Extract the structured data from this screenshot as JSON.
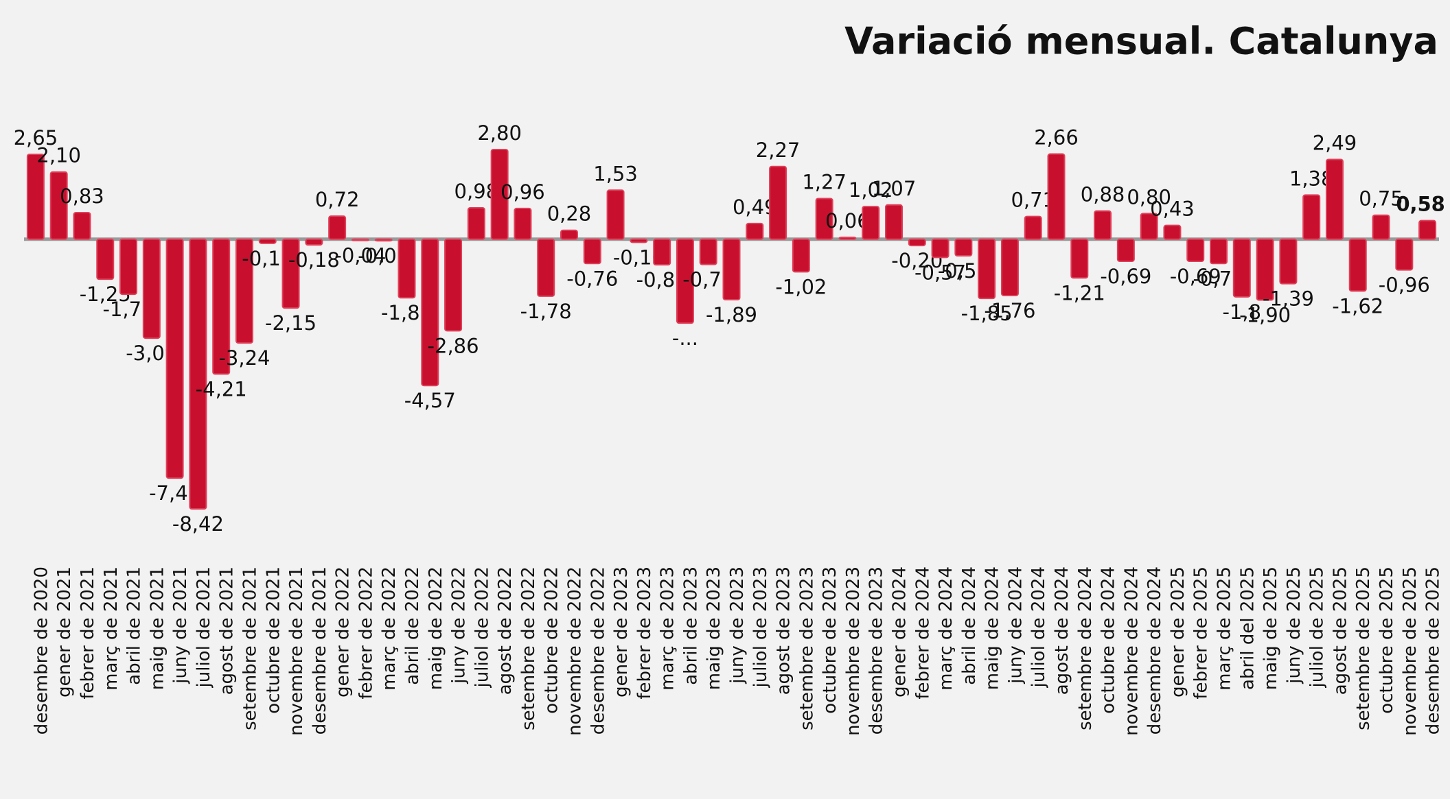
{
  "chart_data": {
    "type": "bar",
    "title": "Variació mensual. Catalunya",
    "color": "#c8102e",
    "categories": [
      "desembre de 2020",
      "gener de 2021",
      "febrer de 2021",
      "març de 2021",
      "abril de 2021",
      "maig de 2021",
      "juny de 2021",
      "juliol de 2021",
      "agost de 2021",
      "setembre de 2021",
      "octubre de 2021",
      "novembre de 2021",
      "desembre de 2021",
      "gener de 2022",
      "febrer de 2022",
      "març de 2022",
      "abril de 2022",
      "maig de 2022",
      "juny de 2022",
      "juliol de 2022",
      "agost de 2022",
      "setembre de 2022",
      "octubre de 2022",
      "novembre de 2022",
      "desembre de 2022",
      "gener de 2023",
      "febrer de 2023",
      "març de 2023",
      "abril de 2023",
      "maig de 2023",
      "juny de 2023",
      "juliol de 2023",
      "agost de 2023",
      "setembre de 2023",
      "octubre de 2023",
      "novembre de 2023",
      "desembre de 2023",
      "gener de 2024",
      "febrer de 2024",
      "març de 2024",
      "abril de 2024",
      "maig de 2024",
      "juny de 2024",
      "juliol de 2024",
      "agost de 2024",
      "setembre de 2024",
      "octubre de 2024",
      "novembre de 2024",
      "desembre de 2024",
      "gener de 2025",
      "febrer de 2025",
      "març de 2025",
      "abril del 2025",
      "maig de 2025",
      "juny de 2025",
      "juliol de 2025",
      "agost de 2025",
      "setembre de 2025",
      "octubre de 2025",
      "novembre de 2025",
      "desembre de 2025"
    ],
    "values": [
      2.65,
      2.1,
      0.83,
      -1.25,
      -1.72,
      -3.09,
      -7.46,
      -8.42,
      -4.21,
      -3.24,
      -0.13,
      -2.15,
      -0.18,
      0.72,
      -0.04,
      -0.05,
      -1.83,
      -4.57,
      -2.86,
      0.98,
      2.8,
      0.96,
      -1.78,
      0.28,
      -0.76,
      1.53,
      -0.1,
      -0.8,
      -2.62,
      -0.79,
      -1.89,
      0.49,
      2.27,
      -1.02,
      1.27,
      0.06,
      1.02,
      1.07,
      -0.2,
      -0.57,
      -0.52,
      -1.85,
      -1.76,
      0.71,
      2.66,
      -1.21,
      0.88,
      -0.69,
      0.8,
      0.43,
      -0.69,
      -0.76,
      -1.8,
      -1.9,
      -1.39,
      1.38,
      2.49,
      -1.62,
      0.75,
      -0.96,
      0.58
    ],
    "value_labels": [
      "2,65",
      "2,10",
      "0,83",
      "-1,25",
      "-1,72",
      "-3,09",
      "-7,46",
      "-8,42",
      "-4,21",
      "-3,24",
      "-0,13",
      "-2,15",
      "-0,18",
      "0,72",
      "-0,04",
      "-0,05",
      "-1,83",
      "-4,57",
      "-2,86",
      "0,98",
      "2,80",
      "0,96",
      "-1,78",
      "0,28",
      "-0,76",
      "1,53",
      "-0,10",
      "-0,80",
      "-...",
      "-0,79",
      "-1,89",
      "0,49",
      "2,27",
      "-1,02",
      "1,27",
      "0,06",
      "1,02",
      "1,07",
      "-0,20",
      "-0,57",
      "-0,52",
      "-1,85",
      "-1,76",
      "0,71",
      "2,66",
      "-1,21",
      "0,88",
      "-0,69",
      "0,80",
      "0,43",
      "-0,69",
      "-0,76",
      "-1,8",
      "-1,90",
      "-1,39",
      "1,38",
      "2,49",
      "-1,62",
      "0,75",
      "-0,96",
      "0,58"
    ]
  }
}
